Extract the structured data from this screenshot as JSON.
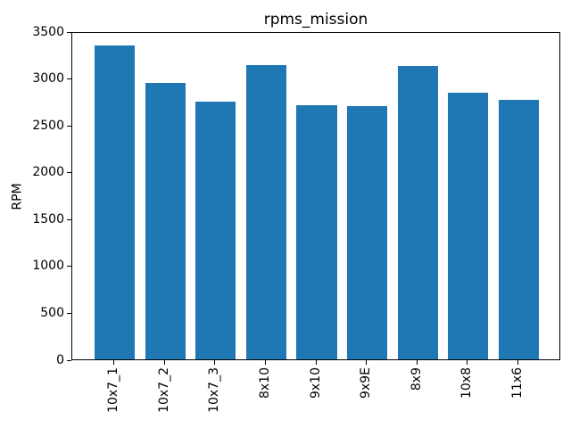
{
  "chart_data": {
    "type": "bar",
    "title": "rpms_mission",
    "xlabel": "",
    "ylabel": "RPM",
    "categories": [
      "10x7_1",
      "10x7_2",
      "10x7_3",
      "8x10",
      "9x10",
      "9x9E",
      "8x9",
      "10x8",
      "11x6"
    ],
    "values": [
      3350,
      2950,
      2750,
      3140,
      2710,
      2700,
      3130,
      2840,
      2770
    ],
    "ylim": [
      0,
      3500
    ],
    "yticks": [
      0,
      500,
      1000,
      1500,
      2000,
      2500,
      3000,
      3500
    ],
    "bar_color": "#1f77b4",
    "bar_width_frac": 0.8,
    "x_margin": 0.44,
    "grid": false,
    "legend": null,
    "x_tick_rotation": 90
  }
}
